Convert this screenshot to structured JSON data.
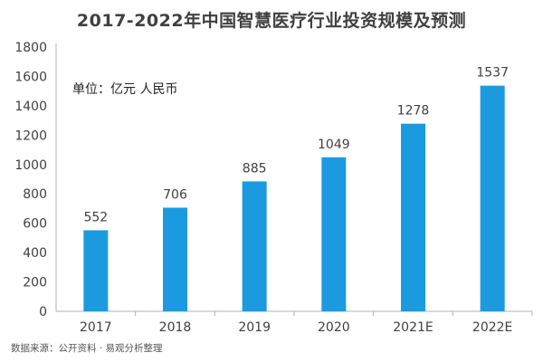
{
  "chart_data": {
    "type": "bar",
    "title": "2017-2022年中国智慧医疗行业投资规模及预测",
    "unit_label": "单位：亿元 人民币",
    "source": "数据来源：公开资料 · 易观分析整理",
    "categories": [
      "2017",
      "2018",
      "2019",
      "2020",
      "2021E",
      "2022E"
    ],
    "values": [
      552,
      706,
      885,
      1049,
      1278,
      1537
    ],
    "data_labels": [
      "552",
      "706",
      "885",
      "1049",
      "1278",
      "1537"
    ],
    "y_ticks": [
      "0",
      "200",
      "400",
      "600",
      "800",
      "1000",
      "1200",
      "1400",
      "1600",
      "1800"
    ],
    "ylim": [
      0,
      1800
    ],
    "grid": false,
    "legend": "none",
    "colors": {
      "bar": "#1b9ae0",
      "axis": "#b0b0b0",
      "text": "#404040"
    }
  }
}
